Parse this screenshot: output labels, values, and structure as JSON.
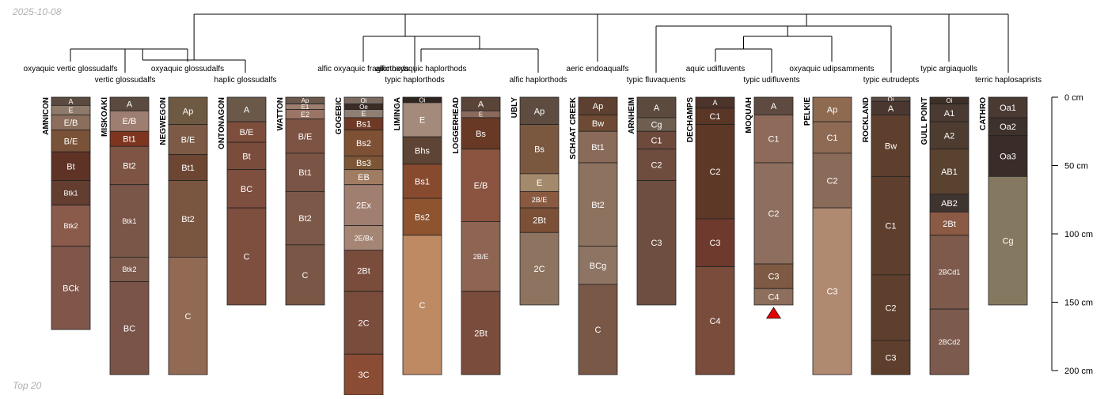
{
  "page": {
    "date_label": "2025-10-08",
    "footer_label": "Top 20"
  },
  "chart_data": {
    "type": "soil-profile-sketch",
    "depth_unit": "cm",
    "depth_axis": {
      "min": 0,
      "max": 200,
      "ticks": [
        0,
        50,
        100,
        150,
        200
      ],
      "tick_labels": [
        "0 cm",
        "50 cm",
        "100 cm",
        "150 cm",
        "200 cm"
      ]
    },
    "taxa": [
      {
        "id": "t1",
        "label": "oxyaquic vertic glossudalfs"
      },
      {
        "id": "t2",
        "label": "vertic glossudalfs"
      },
      {
        "id": "t3",
        "label": "oxyaquic glossudalfs"
      },
      {
        "id": "t4",
        "label": "haplic glossudalfs"
      },
      {
        "id": "t5",
        "label": "alfic oxyaquic fragiorthods"
      },
      {
        "id": "t6",
        "label": "typic haplorthods"
      },
      {
        "id": "t7",
        "label": "alfic oxyaquic haplorthods"
      },
      {
        "id": "t8",
        "label": "alfic haplorthods"
      },
      {
        "id": "t9",
        "label": "aeric endoaqualfs"
      },
      {
        "id": "t10",
        "label": "typic fluvaquents"
      },
      {
        "id": "t11",
        "label": "aquic udifluvents"
      },
      {
        "id": "t12",
        "label": "typic udifluvents"
      },
      {
        "id": "t13",
        "label": "oxyaquic udipsamments"
      },
      {
        "id": "t14",
        "label": "typic eutrudepts"
      },
      {
        "id": "t15",
        "label": "typic argiaquolls"
      },
      {
        "id": "t16",
        "label": "terric haplosaprists"
      }
    ],
    "dendrogram": {
      "n1": {
        "c": [
          "t1",
          "t2"
        ]
      },
      "n2": {
        "c": [
          "n1",
          "t3"
        ]
      },
      "n3": {
        "c": [
          "n2",
          "t4"
        ]
      },
      "n4": {
        "c": [
          "t7",
          "t8"
        ]
      },
      "n5": {
        "c": [
          "t6",
          "n4"
        ]
      },
      "n6": {
        "c": [
          "t5",
          "n5"
        ]
      },
      "n7": {
        "c": [
          "t11",
          "t12"
        ]
      },
      "n8": {
        "c": [
          "n7",
          "t13"
        ]
      },
      "n9": {
        "c": [
          "t10",
          "n8"
        ]
      },
      "n10": {
        "c": [
          "n9",
          "t14"
        ]
      },
      "n11": {
        "c": [
          "n10",
          "t15"
        ]
      },
      "n12": {
        "c": [
          "t9",
          "n11"
        ]
      },
      "n13": {
        "c": [
          "n6",
          "n12"
        ]
      },
      "n14": {
        "c": [
          "n3",
          "n13"
        ]
      },
      "n15": {
        "c": [
          "n14",
          "t16"
        ]
      }
    },
    "profiles": [
      {
        "name": "AMNICON",
        "horizons": [
          {
            "h": "A",
            "top": 0,
            "bot": 6,
            "color": "#5b4a3f"
          },
          {
            "h": "E",
            "top": 6,
            "bot": 13,
            "color": "#8e7a6a"
          },
          {
            "h": "E/B",
            "top": 13,
            "bot": 24,
            "color": "#8c6e5c"
          },
          {
            "h": "B/E",
            "top": 24,
            "bot": 40,
            "color": "#7a5238"
          },
          {
            "h": "Bt",
            "top": 40,
            "bot": 61,
            "color": "#5e3326"
          },
          {
            "h": "Btk1",
            "top": 61,
            "bot": 79,
            "color": "#623d30"
          },
          {
            "h": "Btk2",
            "top": 79,
            "bot": 109,
            "color": "#8a5a4a"
          },
          {
            "h": "BCk",
            "top": 109,
            "bot": 170,
            "color": "#80564a"
          }
        ]
      },
      {
        "name": "MISKOAKI",
        "horizons": [
          {
            "h": "A",
            "top": 0,
            "bot": 10,
            "color": "#5a4a40"
          },
          {
            "h": "E/B",
            "top": 10,
            "bot": 25,
            "color": "#9e7e70"
          },
          {
            "h": "Bt1",
            "top": 25,
            "bot": 36,
            "color": "#7d3520"
          },
          {
            "h": "Bt2",
            "top": 36,
            "bot": 64,
            "color": "#7e5444"
          },
          {
            "h": "Btk1",
            "top": 64,
            "bot": 117,
            "color": "#7a5648"
          },
          {
            "h": "Btk2",
            "top": 117,
            "bot": 135,
            "color": "#7d5a4c"
          },
          {
            "h": "BC",
            "top": 135,
            "bot": 203,
            "color": "#7a5448"
          }
        ]
      },
      {
        "name": "NEGWEGON",
        "horizons": [
          {
            "h": "Ap",
            "top": 0,
            "bot": 20,
            "color": "#6e5a43"
          },
          {
            "h": "B/E",
            "top": 20,
            "bot": 42,
            "color": "#7c5a45"
          },
          {
            "h": "Bt1",
            "top": 42,
            "bot": 61,
            "color": "#6c4632"
          },
          {
            "h": "Bt2",
            "top": 61,
            "bot": 117,
            "color": "#7a5640"
          },
          {
            "h": "C",
            "top": 117,
            "bot": 203,
            "color": "#926a54"
          }
        ]
      },
      {
        "name": "ONTONAGON",
        "horizons": [
          {
            "h": "A",
            "top": 0,
            "bot": 18,
            "color": "#6a5848"
          },
          {
            "h": "B/E",
            "top": 18,
            "bot": 33,
            "color": "#7e4e3c"
          },
          {
            "h": "Bt",
            "top": 33,
            "bot": 53,
            "color": "#7a4c3c"
          },
          {
            "h": "BC",
            "top": 53,
            "bot": 81,
            "color": "#7e4e3e"
          },
          {
            "h": "C",
            "top": 81,
            "bot": 152,
            "color": "#7e4e3e"
          }
        ]
      },
      {
        "name": "WATTON",
        "horizons": [
          {
            "h": "Ap",
            "top": 0,
            "bot": 5,
            "color": "#6a584a"
          },
          {
            "h": "E1",
            "top": 5,
            "bot": 9,
            "color": "#9e7e70"
          },
          {
            "h": "E2",
            "top": 9,
            "bot": 16,
            "color": "#9a7464"
          },
          {
            "h": "B/E",
            "top": 16,
            "bot": 41,
            "color": "#7d5444"
          },
          {
            "h": "Bt1",
            "top": 41,
            "bot": 69,
            "color": "#7a5444"
          },
          {
            "h": "Bt2",
            "top": 69,
            "bot": 108,
            "color": "#7c5848"
          },
          {
            "h": "C",
            "top": 108,
            "bot": 152,
            "color": "#7a5646"
          }
        ]
      },
      {
        "name": "GOGEBIC",
        "horizons": [
          {
            "h": "Oi",
            "top": 0,
            "bot": 5,
            "color": "#7a6a60"
          },
          {
            "h": "Oe",
            "top": 5,
            "bot": 9,
            "color": "#3c2c26"
          },
          {
            "h": "E",
            "top": 9,
            "bot": 15,
            "color": "#8e7e74"
          },
          {
            "h": "Bs1",
            "top": 15,
            "bot": 24,
            "color": "#6e3a26"
          },
          {
            "h": "Bs2",
            "top": 24,
            "bot": 43,
            "color": "#7e5034"
          },
          {
            "h": "Bs3",
            "top": 43,
            "bot": 53,
            "color": "#7c5636"
          },
          {
            "h": "EB",
            "top": 53,
            "bot": 64,
            "color": "#a07c62"
          },
          {
            "h": "2Ex",
            "top": 64,
            "bot": 94,
            "color": "#a07e70"
          },
          {
            "h": "2E/Bx",
            "top": 94,
            "bot": 112,
            "color": "#a58574"
          },
          {
            "h": "2Bt",
            "top": 112,
            "bot": 142,
            "color": "#7a4c3c"
          },
          {
            "h": "2C",
            "top": 142,
            "bot": 188,
            "color": "#7a4c3c"
          },
          {
            "h": "3C",
            "top": 188,
            "bot": 218,
            "color": "#8a4c34"
          }
        ]
      },
      {
        "name": "LIMINGA",
        "horizons": [
          {
            "h": "Oi",
            "top": 0,
            "bot": 4,
            "color": "#2e2420"
          },
          {
            "h": "E",
            "top": 4,
            "bot": 29,
            "color": "#a48a7a"
          },
          {
            "h": "Bhs",
            "top": 29,
            "bot": 49,
            "color": "#5e4434"
          },
          {
            "h": "Bs1",
            "top": 49,
            "bot": 74,
            "color": "#884a2e"
          },
          {
            "h": "Bs2",
            "top": 74,
            "bot": 101,
            "color": "#8e5430"
          },
          {
            "h": "C",
            "top": 101,
            "bot": 203,
            "color": "#be8a64"
          }
        ]
      },
      {
        "name": "LOGGERHEAD",
        "horizons": [
          {
            "h": "A",
            "top": 0,
            "bot": 10,
            "color": "#5a4438"
          },
          {
            "h": "E",
            "top": 10,
            "bot": 15,
            "color": "#8a6a5c"
          },
          {
            "h": "Bs",
            "top": 15,
            "bot": 38,
            "color": "#683a26"
          },
          {
            "h": "E/B",
            "top": 38,
            "bot": 91,
            "color": "#8a5440"
          },
          {
            "h": "2B/E",
            "top": 91,
            "bot": 142,
            "color": "#8e6452"
          },
          {
            "h": "2Bt",
            "top": 142,
            "bot": 203,
            "color": "#7a4c3c"
          }
        ]
      },
      {
        "name": "UBLY",
        "horizons": [
          {
            "h": "Ap",
            "top": 0,
            "bot": 20,
            "color": "#5e4c40"
          },
          {
            "h": "Bs",
            "top": 20,
            "bot": 56,
            "color": "#7a5840"
          },
          {
            "h": "E",
            "top": 56,
            "bot": 69,
            "color": "#a48a6c"
          },
          {
            "h": "2B/E",
            "top": 69,
            "bot": 81,
            "color": "#8a5a40"
          },
          {
            "h": "2Bt",
            "top": 81,
            "bot": 99,
            "color": "#7c5036"
          },
          {
            "h": "2C",
            "top": 99,
            "bot": 152,
            "color": "#8e7460"
          }
        ]
      },
      {
        "name": "SCHAAT CREEK",
        "horizons": [
          {
            "h": "Ap",
            "top": 0,
            "bot": 13,
            "color": "#5e4030"
          },
          {
            "h": "Bw",
            "top": 13,
            "bot": 25,
            "color": "#6e4a34"
          },
          {
            "h": "Bt1",
            "top": 25,
            "bot": 48,
            "color": "#8a6a58"
          },
          {
            "h": "Bt2",
            "top": 48,
            "bot": 109,
            "color": "#8e7260"
          },
          {
            "h": "BCg",
            "top": 109,
            "bot": 137,
            "color": "#8e7462"
          },
          {
            "h": "C",
            "top": 137,
            "bot": 203,
            "color": "#7a5848"
          }
        ]
      },
      {
        "name": "ARNHEIM",
        "horizons": [
          {
            "h": "A",
            "top": 0,
            "bot": 15,
            "color": "#5c4a3e"
          },
          {
            "h": "Cg",
            "top": 15,
            "bot": 25,
            "color": "#6e5e50"
          },
          {
            "h": "C1",
            "top": 25,
            "bot": 38,
            "color": "#6e4a3c"
          },
          {
            "h": "C2",
            "top": 38,
            "bot": 61,
            "color": "#6e4c3e"
          },
          {
            "h": "C3",
            "top": 61,
            "bot": 152,
            "color": "#6e4e40"
          }
        ]
      },
      {
        "name": "DECHAMPS",
        "horizons": [
          {
            "h": "A",
            "top": 0,
            "bot": 8,
            "color": "#4c342a"
          },
          {
            "h": "C1",
            "top": 8,
            "bot": 20,
            "color": "#5a3626"
          },
          {
            "h": "C2",
            "top": 20,
            "bot": 89,
            "color": "#5e3826"
          },
          {
            "h": "C3",
            "top": 89,
            "bot": 124,
            "color": "#6e3a2e"
          },
          {
            "h": "C4",
            "top": 124,
            "bot": 203,
            "color": "#7a4c3c"
          }
        ]
      },
      {
        "name": "MOQUAH",
        "horizons": [
          {
            "h": "A",
            "top": 0,
            "bot": 13,
            "color": "#5e4a40"
          },
          {
            "h": "C1",
            "top": 13,
            "bot": 48,
            "color": "#8e6a5a"
          },
          {
            "h": "C2",
            "top": 48,
            "bot": 122,
            "color": "#8e6e5e"
          },
          {
            "h": "C3",
            "top": 122,
            "bot": 140,
            "color": "#7e5a44"
          },
          {
            "h": "C4",
            "top": 140,
            "bot": 152,
            "color": "#8e6e5c"
          }
        ]
      },
      {
        "name": "PELKIE",
        "horizons": [
          {
            "h": "Ap",
            "top": 0,
            "bot": 18,
            "color": "#8e6a50"
          },
          {
            "h": "C1",
            "top": 18,
            "bot": 41,
            "color": "#8e6a54"
          },
          {
            "h": "C2",
            "top": 41,
            "bot": 81,
            "color": "#8a6a58"
          },
          {
            "h": "C3",
            "top": 81,
            "bot": 203,
            "color": "#b08a70"
          }
        ]
      },
      {
        "name": "ROCKLAND",
        "horizons": [
          {
            "h": "Oi",
            "top": 0,
            "bot": 3,
            "color": "#5a4a40"
          },
          {
            "h": "A",
            "top": 3,
            "bot": 13,
            "color": "#4a3830"
          },
          {
            "h": "Bw",
            "top": 13,
            "bot": 58,
            "color": "#5e3e2c"
          },
          {
            "h": "C1",
            "top": 58,
            "bot": 130,
            "color": "#5e3e2c"
          },
          {
            "h": "C2",
            "top": 130,
            "bot": 178,
            "color": "#5e3e2c"
          },
          {
            "h": "C3",
            "top": 178,
            "bot": 203,
            "color": "#5e3e2c"
          }
        ]
      },
      {
        "name": "GULL POINT",
        "horizons": [
          {
            "h": "Oi",
            "top": 0,
            "bot": 5,
            "color": "#3e3028"
          },
          {
            "h": "A1",
            "top": 5,
            "bot": 18,
            "color": "#4a3a32"
          },
          {
            "h": "A2",
            "top": 18,
            "bot": 38,
            "color": "#4e3c30"
          },
          {
            "h": "AB1",
            "top": 38,
            "bot": 71,
            "color": "#5a4230"
          },
          {
            "h": "AB2",
            "top": 71,
            "bot": 84,
            "color": "#3e3430"
          },
          {
            "h": "2Bt",
            "top": 84,
            "bot": 101,
            "color": "#8a5a44"
          },
          {
            "h": "2BCd1",
            "top": 101,
            "bot": 155,
            "color": "#7e5a4c"
          },
          {
            "h": "2BCd2",
            "top": 155,
            "bot": 203,
            "color": "#7c5a4e"
          }
        ]
      },
      {
        "name": "CATHRO",
        "horizons": [
          {
            "h": "Oa1",
            "top": 0,
            "bot": 15,
            "color": "#4a3a32"
          },
          {
            "h": "Oa2",
            "top": 15,
            "bot": 28,
            "color": "#3e322c"
          },
          {
            "h": "Oa3",
            "top": 28,
            "bot": 58,
            "color": "#3a2c28"
          },
          {
            "h": "Cg",
            "top": 58,
            "bot": 152,
            "color": "#857860"
          }
        ]
      }
    ],
    "markers": [
      {
        "profile": "MOQUAH",
        "symbol": "triangle",
        "color": "#e00000"
      }
    ]
  }
}
